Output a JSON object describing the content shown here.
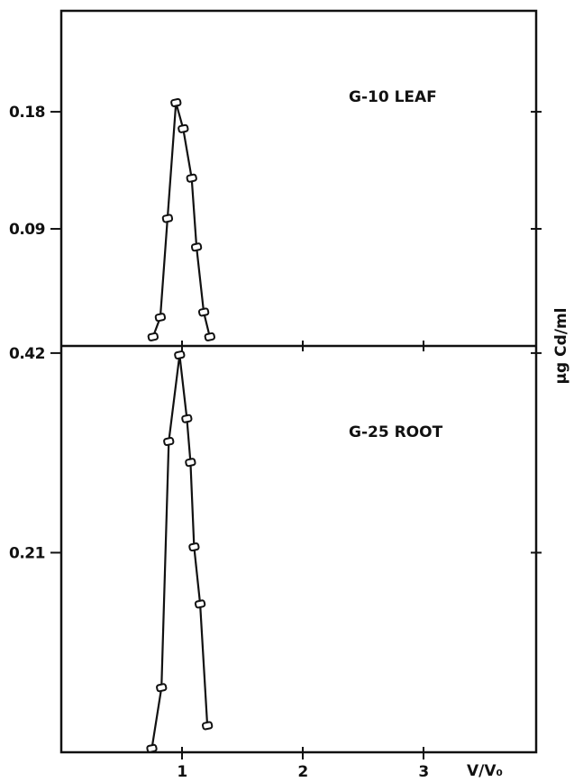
{
  "chart_data": [
    {
      "type": "line",
      "panel_label": "G-10  LEAF",
      "xlabel": "",
      "ylabel": "",
      "xlim": [
        0,
        3.7
      ],
      "ylim": [
        0,
        0.2
      ],
      "y_ticks": [
        {
          "value": 0.18,
          "label": "0.18"
        },
        {
          "value": 0.09,
          "label": "0.09"
        }
      ],
      "series": [
        {
          "points": [
            {
              "x": 0.76,
              "y": 0.007
            },
            {
              "x": 0.82,
              "y": 0.022
            },
            {
              "x": 0.88,
              "y": 0.098
            },
            {
              "x": 0.95,
              "y": 0.187
            },
            {
              "x": 1.01,
              "y": 0.167
            },
            {
              "x": 1.08,
              "y": 0.129
            },
            {
              "x": 1.12,
              "y": 0.076
            },
            {
              "x": 1.18,
              "y": 0.026
            },
            {
              "x": 1.23,
              "y": 0.007
            }
          ]
        }
      ]
    },
    {
      "type": "line",
      "panel_label": "G-25 ROOT",
      "xlabel": "V/V₀",
      "ylabel": "µg Cd/ml",
      "xlim": [
        0,
        3.7
      ],
      "ylim": [
        0,
        0.46
      ],
      "x_ticks": [
        {
          "value": 1,
          "label": "1"
        },
        {
          "value": 2,
          "label": "2"
        },
        {
          "value": 3,
          "label": "3"
        }
      ],
      "y_ticks": [
        {
          "value": 0.42,
          "label": "0.42"
        },
        {
          "value": 0.21,
          "label": "0.21"
        }
      ],
      "series": [
        {
          "points": [
            {
              "x": 0.75,
              "y": 0.004
            },
            {
              "x": 0.83,
              "y": 0.068
            },
            {
              "x": 0.89,
              "y": 0.327
            },
            {
              "x": 0.98,
              "y": 0.418
            },
            {
              "x": 1.04,
              "y": 0.351
            },
            {
              "x": 1.07,
              "y": 0.305
            },
            {
              "x": 1.1,
              "y": 0.216
            },
            {
              "x": 1.15,
              "y": 0.156
            },
            {
              "x": 1.21,
              "y": 0.028
            }
          ]
        }
      ]
    }
  ],
  "colors": {
    "ink": "#111111",
    "background": "#ffffff"
  }
}
